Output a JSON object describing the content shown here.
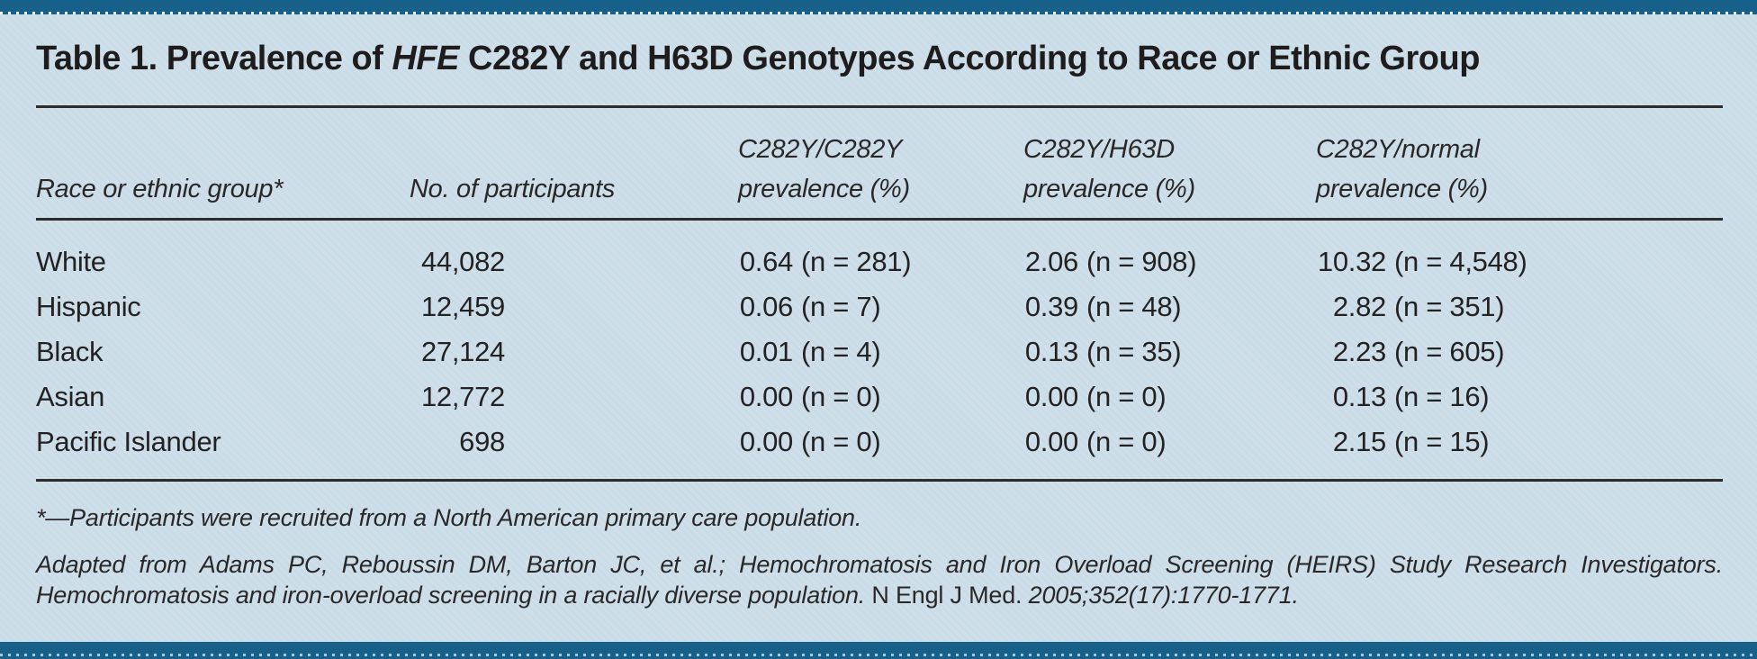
{
  "title": {
    "prefix": "Table 1. Prevalence of ",
    "gene_italic": "HFE",
    "suffix": " C282Y and H63D Genotypes According to Race or Ethnic Group"
  },
  "table": {
    "headers": [
      "Race or ethnic group*",
      "No. of participants",
      "C282Y/C282Y\nprevalence (%)",
      "C282Y/H63D\nprevalence (%)",
      "C282Y/normal\nprevalence (%)"
    ],
    "rows": [
      {
        "group": "White",
        "participants": "44,082",
        "c282y_c282y": {
          "pct": "0.64",
          "n": "(n = 281)"
        },
        "c282y_h63d": {
          "pct": "2.06",
          "n": "(n = 908)"
        },
        "c282y_normal": {
          "pct": "10.32",
          "n": "(n = 4,548)"
        }
      },
      {
        "group": "Hispanic",
        "participants": "12,459",
        "c282y_c282y": {
          "pct": "0.06",
          "n": "(n = 7)"
        },
        "c282y_h63d": {
          "pct": "0.39",
          "n": "(n = 48)"
        },
        "c282y_normal": {
          "pct": "2.82",
          "n": "(n = 351)"
        }
      },
      {
        "group": "Black",
        "participants": "27,124",
        "c282y_c282y": {
          "pct": "0.01",
          "n": "(n = 4)"
        },
        "c282y_h63d": {
          "pct": "0.13",
          "n": "(n = 35)"
        },
        "c282y_normal": {
          "pct": "2.23",
          "n": "(n = 605)"
        }
      },
      {
        "group": "Asian",
        "participants": "12,772",
        "c282y_c282y": {
          "pct": "0.00",
          "n": "(n = 0)"
        },
        "c282y_h63d": {
          "pct": "0.00",
          "n": "(n = 0)"
        },
        "c282y_normal": {
          "pct": "0.13",
          "n": "(n = 16)"
        }
      },
      {
        "group": "Pacific Islander",
        "participants": "698",
        "c282y_c282y": {
          "pct": "0.00",
          "n": "(n = 0)"
        },
        "c282y_h63d": {
          "pct": "0.00",
          "n": "(n = 0)"
        },
        "c282y_normal": {
          "pct": "2.15",
          "n": "(n = 15)"
        }
      }
    ]
  },
  "footnotes": {
    "asterisk": "*—Participants were recruited from a North American primary care population.",
    "citation_line1": "Adapted from Adams PC, Reboussin DM, Barton JC, et al.; Hemochromatosis and Iron Overload Screening (HEIRS) Study Research Investigators.",
    "citation_line2_italic": "Hemochromatosis and iron-overload screening in a racially diverse population. ",
    "citation_line2_roman": "N Engl J Med. ",
    "citation_line2_italic_end": "2005;352(17):1770-1771."
  },
  "colors": {
    "accent_bar": "#16608a",
    "background": "#cedfe9",
    "text": "#242122",
    "rule": "#2d2b2b"
  }
}
